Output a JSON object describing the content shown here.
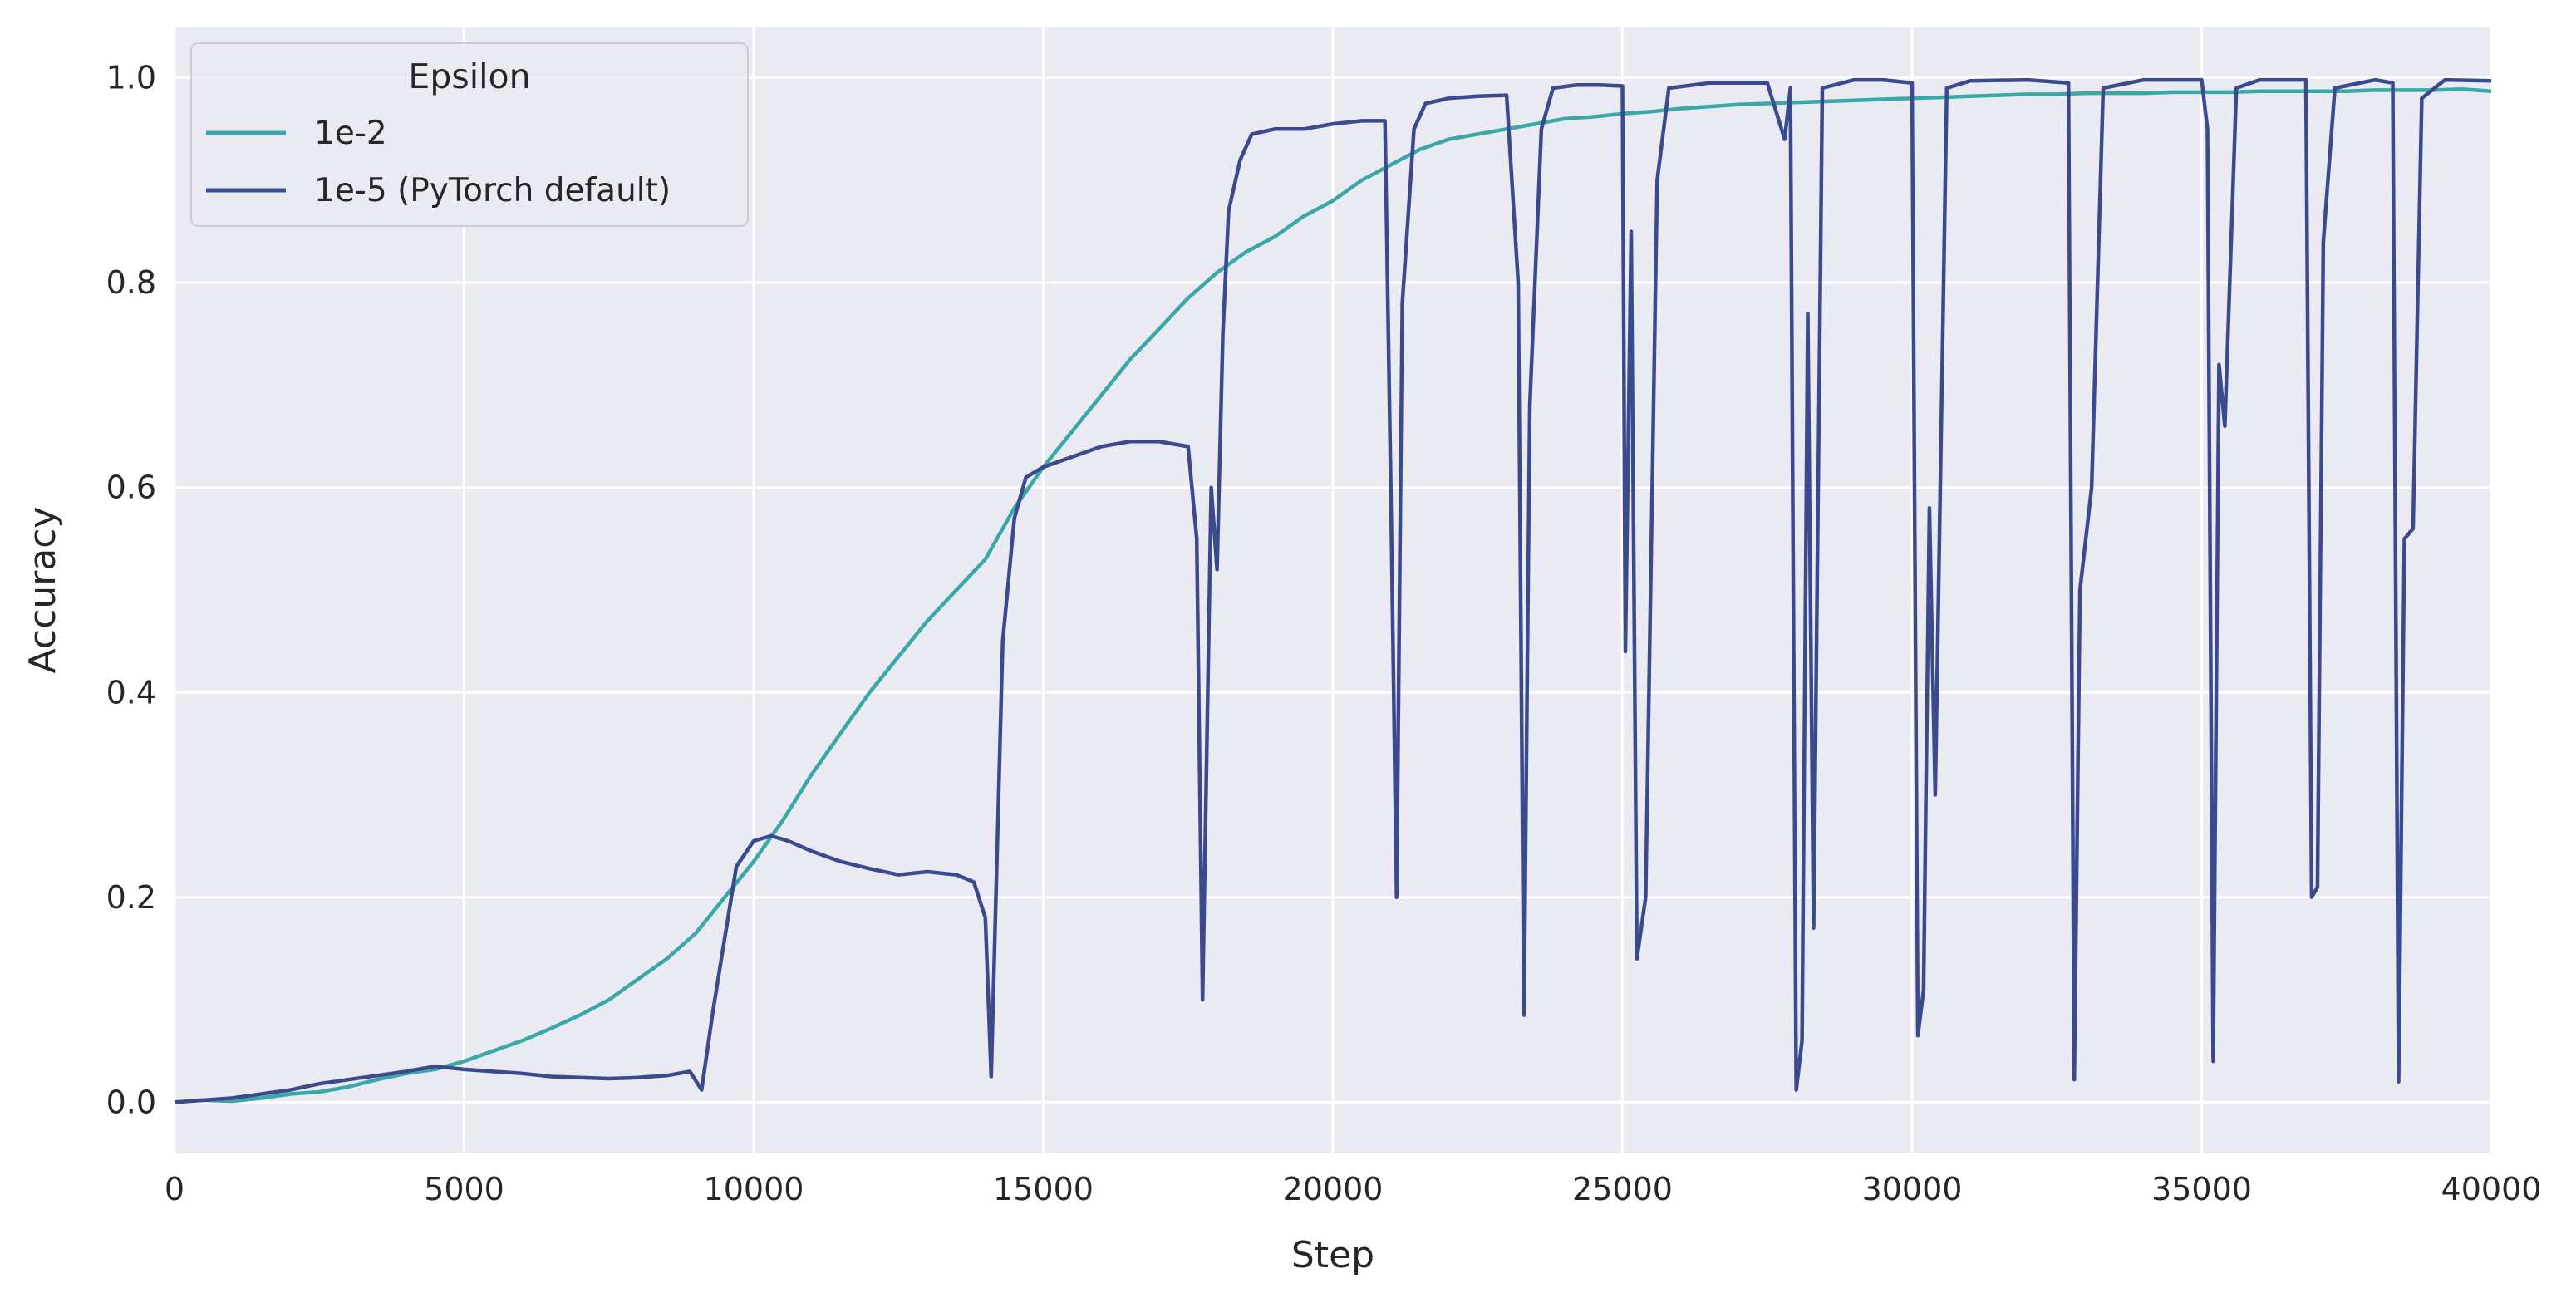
{
  "chart_data": {
    "type": "line",
    "title": "",
    "xlabel": "Step",
    "ylabel": "Accuracy",
    "xlim": [
      0,
      40000
    ],
    "ylim": [
      -0.05,
      1.05
    ],
    "xticks": [
      0,
      5000,
      10000,
      15000,
      20000,
      25000,
      30000,
      35000,
      40000
    ],
    "yticks": [
      0.0,
      0.2,
      0.4,
      0.6,
      0.8,
      1.0
    ],
    "xtick_labels": [
      "0",
      "5000",
      "10000",
      "15000",
      "20000",
      "25000",
      "30000",
      "35000",
      "40000"
    ],
    "ytick_labels": [
      "0.0",
      "0.2",
      "0.4",
      "0.6",
      "0.8",
      "1.0"
    ],
    "grid": true,
    "legend": {
      "title": "Epsilon",
      "placement": "top-left"
    },
    "background_color": "#eaeaf2",
    "grid_color": "#ffffff",
    "series": [
      {
        "name": "1e-2",
        "color": "#3aa8a8",
        "points": [
          [
            0,
            0.0
          ],
          [
            500,
            0.002
          ],
          [
            1000,
            0.001
          ],
          [
            1500,
            0.004
          ],
          [
            2000,
            0.008
          ],
          [
            2500,
            0.01
          ],
          [
            3000,
            0.015
          ],
          [
            3500,
            0.022
          ],
          [
            4000,
            0.028
          ],
          [
            4500,
            0.032
          ],
          [
            5000,
            0.04
          ],
          [
            5500,
            0.05
          ],
          [
            6000,
            0.06
          ],
          [
            6500,
            0.072
          ],
          [
            7000,
            0.085
          ],
          [
            7500,
            0.1
          ],
          [
            8000,
            0.12
          ],
          [
            8500,
            0.14
          ],
          [
            9000,
            0.165
          ],
          [
            9500,
            0.2
          ],
          [
            10000,
            0.235
          ],
          [
            10500,
            0.275
          ],
          [
            11000,
            0.32
          ],
          [
            11500,
            0.36
          ],
          [
            12000,
            0.4
          ],
          [
            12500,
            0.435
          ],
          [
            13000,
            0.47
          ],
          [
            13500,
            0.5
          ],
          [
            14000,
            0.53
          ],
          [
            14500,
            0.58
          ],
          [
            15000,
            0.62
          ],
          [
            15500,
            0.655
          ],
          [
            16000,
            0.69
          ],
          [
            16500,
            0.725
          ],
          [
            17000,
            0.755
          ],
          [
            17500,
            0.785
          ],
          [
            18000,
            0.81
          ],
          [
            18500,
            0.83
          ],
          [
            19000,
            0.845
          ],
          [
            19500,
            0.865
          ],
          [
            20000,
            0.88
          ],
          [
            20500,
            0.9
          ],
          [
            21000,
            0.915
          ],
          [
            21500,
            0.93
          ],
          [
            22000,
            0.94
          ],
          [
            22500,
            0.945
          ],
          [
            23000,
            0.95
          ],
          [
            23500,
            0.955
          ],
          [
            24000,
            0.96
          ],
          [
            24500,
            0.962
          ],
          [
            25000,
            0.965
          ],
          [
            25500,
            0.967
          ],
          [
            26000,
            0.97
          ],
          [
            26500,
            0.972
          ],
          [
            27000,
            0.974
          ],
          [
            27500,
            0.975
          ],
          [
            28000,
            0.976
          ],
          [
            28500,
            0.977
          ],
          [
            29000,
            0.978
          ],
          [
            29500,
            0.979
          ],
          [
            30000,
            0.98
          ],
          [
            30500,
            0.981
          ],
          [
            31000,
            0.982
          ],
          [
            31500,
            0.983
          ],
          [
            32000,
            0.984
          ],
          [
            32500,
            0.984
          ],
          [
            33000,
            0.985
          ],
          [
            33500,
            0.985
          ],
          [
            34000,
            0.985
          ],
          [
            34500,
            0.986
          ],
          [
            35000,
            0.986
          ],
          [
            35500,
            0.986
          ],
          [
            36000,
            0.987
          ],
          [
            36500,
            0.987
          ],
          [
            37000,
            0.987
          ],
          [
            37500,
            0.987
          ],
          [
            38000,
            0.988
          ],
          [
            38500,
            0.988
          ],
          [
            39000,
            0.988
          ],
          [
            39500,
            0.989
          ],
          [
            40000,
            0.987
          ]
        ]
      },
      {
        "name": "1e-5 (PyTorch default)",
        "color": "#3b4a8c",
        "points": [
          [
            0,
            0.0
          ],
          [
            500,
            0.002
          ],
          [
            1000,
            0.004
          ],
          [
            1500,
            0.008
          ],
          [
            2000,
            0.012
          ],
          [
            2500,
            0.018
          ],
          [
            3000,
            0.022
          ],
          [
            3500,
            0.026
          ],
          [
            4000,
            0.03
          ],
          [
            4500,
            0.035
          ],
          [
            5000,
            0.032
          ],
          [
            5500,
            0.03
          ],
          [
            6000,
            0.028
          ],
          [
            6500,
            0.025
          ],
          [
            7000,
            0.024
          ],
          [
            7500,
            0.023
          ],
          [
            8000,
            0.024
          ],
          [
            8500,
            0.026
          ],
          [
            8900,
            0.03
          ],
          [
            9100,
            0.012
          ],
          [
            9300,
            0.09
          ],
          [
            9500,
            0.16
          ],
          [
            9700,
            0.23
          ],
          [
            10000,
            0.255
          ],
          [
            10300,
            0.26
          ],
          [
            10600,
            0.255
          ],
          [
            11000,
            0.245
          ],
          [
            11500,
            0.235
          ],
          [
            12000,
            0.228
          ],
          [
            12500,
            0.222
          ],
          [
            13000,
            0.225
          ],
          [
            13500,
            0.222
          ],
          [
            13800,
            0.215
          ],
          [
            14000,
            0.18
          ],
          [
            14100,
            0.025
          ],
          [
            14300,
            0.45
          ],
          [
            14500,
            0.57
          ],
          [
            14700,
            0.61
          ],
          [
            15000,
            0.62
          ],
          [
            15500,
            0.63
          ],
          [
            16000,
            0.64
          ],
          [
            16500,
            0.645
          ],
          [
            17000,
            0.645
          ],
          [
            17500,
            0.64
          ],
          [
            17650,
            0.55
          ],
          [
            17750,
            0.1
          ],
          [
            17900,
            0.6
          ],
          [
            18000,
            0.52
          ],
          [
            18100,
            0.75
          ],
          [
            18200,
            0.87
          ],
          [
            18400,
            0.92
          ],
          [
            18600,
            0.945
          ],
          [
            19000,
            0.95
          ],
          [
            19500,
            0.95
          ],
          [
            20000,
            0.955
          ],
          [
            20500,
            0.958
          ],
          [
            20900,
            0.958
          ],
          [
            21000,
            0.6
          ],
          [
            21100,
            0.2
          ],
          [
            21200,
            0.78
          ],
          [
            21400,
            0.95
          ],
          [
            21600,
            0.975
          ],
          [
            22000,
            0.98
          ],
          [
            22500,
            0.982
          ],
          [
            23000,
            0.983
          ],
          [
            23200,
            0.8
          ],
          [
            23300,
            0.085
          ],
          [
            23400,
            0.68
          ],
          [
            23600,
            0.95
          ],
          [
            23800,
            0.99
          ],
          [
            24200,
            0.993
          ],
          [
            24600,
            0.993
          ],
          [
            25000,
            0.992
          ],
          [
            25050,
            0.44
          ],
          [
            25150,
            0.85
          ],
          [
            25250,
            0.14
          ],
          [
            25400,
            0.2
          ],
          [
            25600,
            0.9
          ],
          [
            25800,
            0.99
          ],
          [
            26500,
            0.995
          ],
          [
            27500,
            0.995
          ],
          [
            27800,
            0.94
          ],
          [
            27900,
            0.99
          ],
          [
            28000,
            0.012
          ],
          [
            28100,
            0.06
          ],
          [
            28200,
            0.77
          ],
          [
            28300,
            0.17
          ],
          [
            28450,
            0.99
          ],
          [
            29000,
            0.998
          ],
          [
            29500,
            0.998
          ],
          [
            30000,
            0.995
          ],
          [
            30100,
            0.065
          ],
          [
            30200,
            0.11
          ],
          [
            30300,
            0.58
          ],
          [
            30400,
            0.3
          ],
          [
            30600,
            0.99
          ],
          [
            31000,
            0.997
          ],
          [
            32000,
            0.998
          ],
          [
            32700,
            0.995
          ],
          [
            32800,
            0.022
          ],
          [
            32900,
            0.5
          ],
          [
            33100,
            0.6
          ],
          [
            33300,
            0.99
          ],
          [
            34000,
            0.998
          ],
          [
            35000,
            0.998
          ],
          [
            35100,
            0.95
          ],
          [
            35200,
            0.04
          ],
          [
            35300,
            0.72
          ],
          [
            35400,
            0.66
          ],
          [
            35600,
            0.99
          ],
          [
            36000,
            0.998
          ],
          [
            36800,
            0.998
          ],
          [
            36900,
            0.2
          ],
          [
            37000,
            0.21
          ],
          [
            37100,
            0.84
          ],
          [
            37300,
            0.99
          ],
          [
            38000,
            0.998
          ],
          [
            38300,
            0.995
          ],
          [
            38400,
            0.02
          ],
          [
            38500,
            0.55
          ],
          [
            38650,
            0.56
          ],
          [
            38800,
            0.98
          ],
          [
            39200,
            0.998
          ],
          [
            40000,
            0.997
          ]
        ]
      }
    ]
  }
}
